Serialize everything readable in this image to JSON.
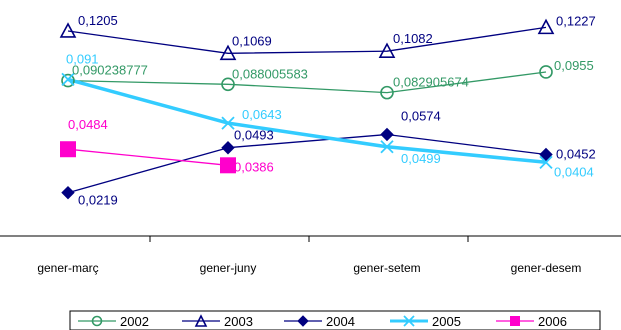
{
  "chart_data": {
    "type": "line",
    "categories": [
      "gener-març",
      "gener-juny",
      "gener-setem",
      "gener-desem"
    ],
    "series": [
      {
        "name": "2002",
        "values": [
          0.090238777,
          0.088005583,
          0.082905674,
          0.0955
        ],
        "labels": [
          "0,090238777",
          "0,088005583",
          "0,082905674",
          "0,0955"
        ],
        "color": "#339966",
        "marker": "circle-open",
        "line_width": 1.3
      },
      {
        "name": "2003",
        "values": [
          0.1205,
          0.1069,
          0.1082,
          0.1227
        ],
        "labels": [
          "0,1205",
          "0,1069",
          "0,1082",
          "0,1227"
        ],
        "color": "#000080",
        "marker": "triangle-open",
        "line_width": 1.3
      },
      {
        "name": "2004",
        "values": [
          0.0219,
          0.0493,
          0.0574,
          0.0452
        ],
        "labels": [
          "0,0219",
          "0,0493",
          "0,0574",
          "0,0452"
        ],
        "color": "#000080",
        "marker": "diamond-filled",
        "line_width": 1.3
      },
      {
        "name": "2005",
        "values": [
          0.091,
          0.0643,
          0.0499,
          0.0404
        ],
        "labels": [
          "0,091",
          "0,0643",
          "0,0499",
          "0,0404"
        ],
        "color": "#33CCFF",
        "marker": "x",
        "line_width": 3.5
      },
      {
        "name": "2006",
        "values": [
          0.0484,
          0.0386,
          null,
          null
        ],
        "labels": [
          "0,0484",
          "0,0386",
          null,
          null
        ],
        "color": "#FF00CC",
        "marker": "square-filled",
        "line_width": 1.3
      }
    ],
    "legend_position": "bottom",
    "grid": false,
    "ylim": [
      0.0,
      0.13
    ]
  }
}
